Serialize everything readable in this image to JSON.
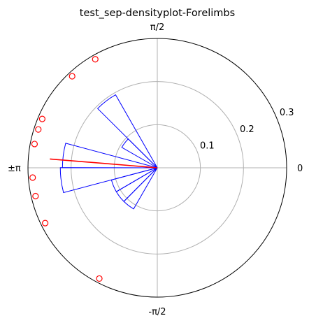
{
  "chart_data": {
    "type": "polar",
    "title": "test_sep-densityplot-Forelimbs",
    "angle_tick_labels": {
      "right": "0",
      "top": "π/2",
      "left": "±π",
      "bottom": "-π/2"
    },
    "radial_tick_labels": [
      "0.1",
      "0.2",
      "0.3"
    ],
    "radial_ticks": [
      0.1,
      0.2,
      0.3
    ],
    "rmax": 0.3,
    "grid": true,
    "bins": [
      {
        "start": 2.09,
        "end": 2.36,
        "value": 0.195
      },
      {
        "start": 2.36,
        "end": 2.62,
        "value": 0.095
      },
      {
        "start": 2.88,
        "end": 3.14,
        "value": 0.22
      },
      {
        "start": 3.14,
        "end": 3.4,
        "value": 0.225
      },
      {
        "start": 3.4,
        "end": 3.67,
        "value": 0.11
      },
      {
        "start": 3.67,
        "end": 3.93,
        "value": 0.11
      },
      {
        "start": 3.93,
        "end": 4.19,
        "value": 0.11
      }
    ],
    "mean_vector": {
      "angle": 3.06,
      "length": 0.25
    },
    "points": [
      {
        "angle": 2.09,
        "r": 0.29
      },
      {
        "angle": 2.32,
        "r": 0.29
      },
      {
        "angle": 2.74,
        "r": 0.29
      },
      {
        "angle": 2.83,
        "r": 0.29
      },
      {
        "angle": 2.95,
        "r": 0.29
      },
      {
        "angle": 3.22,
        "r": 0.29
      },
      {
        "angle": 3.37,
        "r": 0.29
      },
      {
        "angle": 3.6,
        "r": 0.29
      },
      {
        "angle": 4.23,
        "r": 0.29
      }
    ],
    "colors": {
      "bars": "#0000ff",
      "mean_line": "#ff0000",
      "points": "#ff0000",
      "grid": "#b0b0b0"
    }
  }
}
